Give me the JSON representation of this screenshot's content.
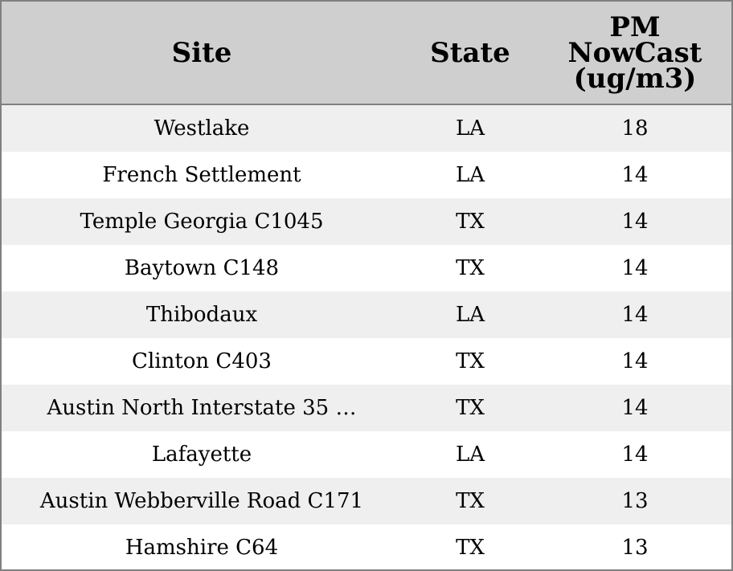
{
  "table": {
    "columns": [
      "Site",
      "State",
      "PM\nNowCast\n(ug/m3)"
    ],
    "rows": [
      {
        "site": "Westlake",
        "state": "LA",
        "pm": "18"
      },
      {
        "site": "French Settlement",
        "state": "LA",
        "pm": "14"
      },
      {
        "site": "Temple Georgia C1045",
        "state": "TX",
        "pm": "14"
      },
      {
        "site": "Baytown C148",
        "state": "TX",
        "pm": "14"
      },
      {
        "site": "Thibodaux",
        "state": "LA",
        "pm": "14"
      },
      {
        "site": "Clinton C403",
        "state": "TX",
        "pm": "14"
      },
      {
        "site": "Austin North Interstate 35 …",
        "state": "TX",
        "pm": "14"
      },
      {
        "site": "Lafayette",
        "state": "LA",
        "pm": "14"
      },
      {
        "site": "Austin Webberville Road C171",
        "state": "TX",
        "pm": "13"
      },
      {
        "site": "Hamshire C64",
        "state": "TX",
        "pm": "13"
      }
    ]
  },
  "colors": {
    "header_bg": "#cfcfcf",
    "row_shade": "#efefef",
    "row_plain": "#ffffff",
    "border": "#808080"
  }
}
